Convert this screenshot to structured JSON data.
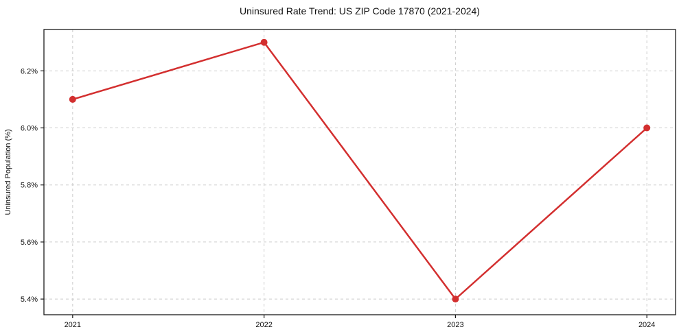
{
  "chart_data": {
    "type": "line",
    "title": "Uninsured Rate Trend: US ZIP Code 17870 (2021-2024)",
    "xlabel": "",
    "ylabel": "Uninsured Population (%)",
    "x": [
      2021,
      2022,
      2023,
      2024
    ],
    "x_tick_labels": [
      "2021",
      "2022",
      "2023",
      "2024"
    ],
    "values": [
      6.1,
      6.3,
      5.4,
      6.0
    ],
    "y_ticks": [
      5.4,
      5.6,
      5.8,
      6.0,
      6.2
    ],
    "y_tick_labels": [
      "5.4%",
      "5.6%",
      "5.8%",
      "6.0%",
      "6.2%"
    ],
    "xlim": [
      2020.85,
      2024.15
    ],
    "ylim": [
      5.345,
      6.345
    ],
    "grid": true,
    "grid_style": "dashed",
    "grid_color": "#cccccc",
    "line_color": "#d32f2f",
    "marker": "circle",
    "legend": "none"
  }
}
